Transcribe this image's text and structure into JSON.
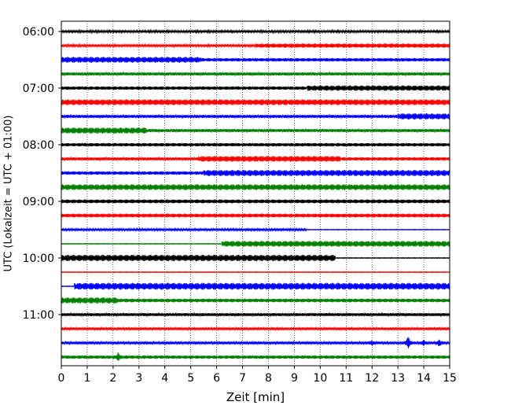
{
  "chart_data": {
    "type": "line",
    "chart_kind": "helicorder (seismogram drum plot)",
    "xlabel": "Zeit  [min]",
    "ylabel": "UTC (Lokalzeit = UTC + 01:00)",
    "xlim": [
      0,
      15
    ],
    "x_ticks": [
      0,
      1,
      2,
      3,
      4,
      5,
      6,
      7,
      8,
      9,
      10,
      11,
      12,
      13,
      14,
      15
    ],
    "x_tick_labels": [
      "0",
      "1",
      "2",
      "3",
      "4",
      "5",
      "6",
      "7",
      "8",
      "9",
      "10",
      "11",
      "12",
      "13",
      "14",
      "15"
    ],
    "y_tick_labels": [
      "06:00",
      "07:00",
      "08:00",
      "09:00",
      "10:00",
      "11:00"
    ],
    "y_tick_rows": [
      0,
      4,
      8,
      12,
      16,
      20
    ],
    "grid": "vertical dotted lines at each minute",
    "line_colors": [
      "#000000",
      "#ff0000",
      "#0000ff",
      "#008000"
    ],
    "traces": [
      {
        "time": "06:00",
        "color": "#000000",
        "segments": [
          {
            "start": 0,
            "end": 15,
            "amp": 1.5
          }
        ]
      },
      {
        "time": "06:15",
        "color": "#ff0000",
        "segments": [
          {
            "start": 0,
            "end": 7.5,
            "amp": 1.5
          },
          {
            "start": 7.5,
            "end": 15,
            "amp": 2.8
          }
        ]
      },
      {
        "time": "06:30",
        "color": "#0000ff",
        "segments": [
          {
            "start": 0,
            "end": 5.4,
            "amp": 3.8
          },
          {
            "start": 5.4,
            "end": 15,
            "amp": 2.2
          }
        ]
      },
      {
        "time": "06:45",
        "color": "#008000",
        "segments": [
          {
            "start": 0,
            "end": 15,
            "amp": 2.0
          }
        ]
      },
      {
        "time": "07:00",
        "color": "#000000",
        "segments": [
          {
            "start": 0,
            "end": 9.5,
            "amp": 2.2
          },
          {
            "start": 9.5,
            "end": 15,
            "amp": 3.5
          }
        ]
      },
      {
        "time": "07:15",
        "color": "#ff0000",
        "segments": [
          {
            "start": 0,
            "end": 15,
            "amp": 3.8
          }
        ]
      },
      {
        "time": "07:30",
        "color": "#0000ff",
        "segments": [
          {
            "start": 0,
            "end": 13,
            "amp": 2.0
          },
          {
            "start": 13,
            "end": 15,
            "amp": 4.0
          }
        ]
      },
      {
        "time": "07:45",
        "color": "#008000",
        "segments": [
          {
            "start": 0,
            "end": 3.3,
            "amp": 4.0
          },
          {
            "start": 3.3,
            "end": 15,
            "amp": 2.0
          }
        ]
      },
      {
        "time": "08:00",
        "color": "#000000",
        "segments": [
          {
            "start": 0,
            "end": 15,
            "amp": 2.2
          }
        ]
      },
      {
        "time": "08:15",
        "color": "#ff0000",
        "segments": [
          {
            "start": 0,
            "end": 5.3,
            "amp": 2.0
          },
          {
            "start": 5.3,
            "end": 10.8,
            "amp": 3.8
          },
          {
            "start": 10.8,
            "end": 15,
            "amp": 2.2
          }
        ]
      },
      {
        "time": "08:30",
        "color": "#0000ff",
        "segments": [
          {
            "start": 0,
            "end": 5.5,
            "amp": 2.2
          },
          {
            "start": 5.5,
            "end": 15,
            "amp": 4.0
          }
        ]
      },
      {
        "time": "08:45",
        "color": "#008000",
        "segments": [
          {
            "start": 0,
            "end": 15,
            "amp": 3.8
          }
        ]
      },
      {
        "time": "09:00",
        "color": "#000000",
        "segments": [
          {
            "start": 0,
            "end": 15,
            "amp": 2.5
          }
        ]
      },
      {
        "time": "09:15",
        "color": "#ff0000",
        "segments": [
          {
            "start": 0,
            "end": 15,
            "amp": 2.5
          }
        ]
      },
      {
        "time": "09:30",
        "color": "#0000ff",
        "segments": [
          {
            "start": 0,
            "end": 9.5,
            "amp": 1.6
          },
          {
            "start": 9.5,
            "end": 15,
            "amp": 0.5
          }
        ]
      },
      {
        "time": "09:45",
        "color": "#008000",
        "segments": [
          {
            "start": 0,
            "end": 6.2,
            "amp": 0.5
          },
          {
            "start": 6.2,
            "end": 15,
            "amp": 3.8
          }
        ]
      },
      {
        "time": "10:00",
        "color": "#000000",
        "segments": [
          {
            "start": 0,
            "end": 10.6,
            "amp": 4.2
          },
          {
            "start": 10.6,
            "end": 15,
            "amp": 0.5
          }
        ]
      },
      {
        "time": "10:15",
        "color": "#ff0000",
        "segments": [
          {
            "start": 0,
            "end": 15,
            "amp": 0.5
          }
        ]
      },
      {
        "time": "10:30",
        "color": "#0000ff",
        "segments": [
          {
            "start": 0,
            "end": 0.5,
            "amp": 0.5
          },
          {
            "start": 0.5,
            "end": 15,
            "amp": 4.5
          }
        ]
      },
      {
        "time": "10:45",
        "color": "#008000",
        "segments": [
          {
            "start": 0,
            "end": 2.2,
            "amp": 4.0
          },
          {
            "start": 2.2,
            "end": 15,
            "amp": 2.4
          }
        ]
      },
      {
        "time": "11:00",
        "color": "#000000",
        "segments": [
          {
            "start": 0,
            "end": 15,
            "amp": 2.0
          }
        ]
      },
      {
        "time": "11:15",
        "color": "#ff0000",
        "segments": [
          {
            "start": 0,
            "end": 15,
            "amp": 1.8
          }
        ]
      },
      {
        "time": "11:30",
        "color": "#0000ff",
        "segments": [
          {
            "start": 0,
            "end": 15,
            "amp": 1.8
          }
        ],
        "events": [
          {
            "t": 13.4,
            "amp": 10
          },
          {
            "t": 14.0,
            "amp": 5
          },
          {
            "t": 14.6,
            "amp": 6
          },
          {
            "t": 12.0,
            "amp": 4
          }
        ]
      },
      {
        "time": "11:45",
        "color": "#008000",
        "segments": [
          {
            "start": 0,
            "end": 15,
            "amp": 2.2
          }
        ],
        "events": [
          {
            "t": 2.2,
            "amp": 8
          }
        ]
      }
    ]
  }
}
